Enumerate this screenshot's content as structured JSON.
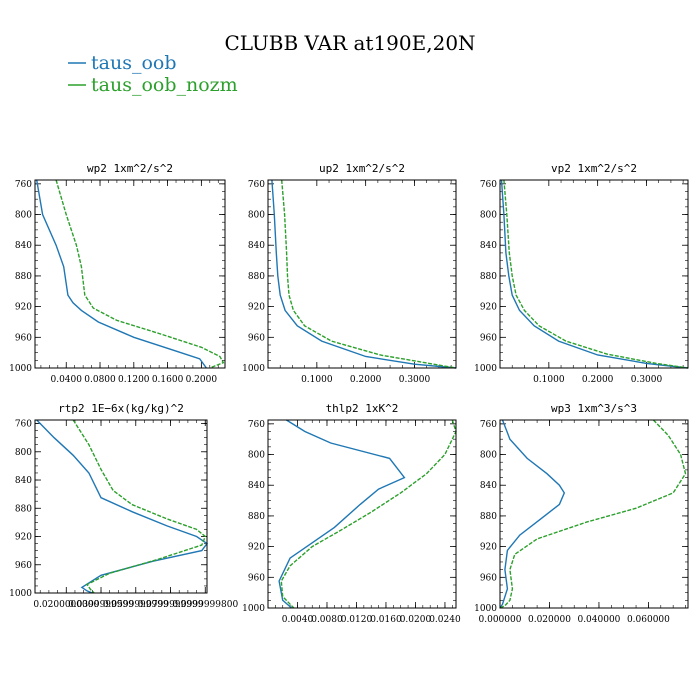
{
  "figure": {
    "title": "CLUBB VAR at190E,20N"
  },
  "legend": [
    {
      "name": "taus_oob",
      "color": "#1f77b4"
    },
    {
      "name": "taus_oob_nozm",
      "color": "#2ca02c"
    }
  ],
  "chart_data": [
    {
      "type": "line",
      "title": "wp2   1xm^2/s^2",
      "y_ticks": [
        "760",
        "800",
        "840",
        "880",
        "920",
        "960",
        "1000"
      ],
      "x_ticks": [
        "0.0400",
        "0.0800",
        "0.1200",
        "0.1600",
        "0.2000"
      ],
      "xlim": [
        0.003,
        0.228
      ],
      "ylim": [
        1000,
        755
      ],
      "series": [
        {
          "name": "taus_oob",
          "x": [
            0.005,
            0.012,
            0.028,
            0.037,
            0.042,
            0.048,
            0.058,
            0.078,
            0.12,
            0.17,
            0.198,
            0.206
          ],
          "y": [
            755,
            800,
            840,
            868,
            905,
            915,
            925,
            940,
            960,
            978,
            988,
            1000
          ]
        },
        {
          "name": "taus_oob_nozm",
          "x": [
            0.028,
            0.04,
            0.052,
            0.058,
            0.062,
            0.072,
            0.1,
            0.15,
            0.2,
            0.222,
            0.226,
            0.21
          ],
          "y": [
            755,
            800,
            840,
            868,
            905,
            922,
            938,
            955,
            973,
            985,
            993,
            1000
          ]
        }
      ]
    },
    {
      "type": "line",
      "title": "up2   1xm^2/s^2",
      "y_ticks": [
        "760",
        "800",
        "840",
        "880",
        "920",
        "960",
        "1000"
      ],
      "x_ticks": [
        "0.1000",
        "0.2000",
        "0.3000"
      ],
      "xlim": [
        0.0,
        0.385
      ],
      "ylim": [
        1000,
        755
      ],
      "series": [
        {
          "name": "taus_oob",
          "x": [
            0.008,
            0.013,
            0.017,
            0.02,
            0.025,
            0.035,
            0.06,
            0.11,
            0.2,
            0.3,
            0.385
          ],
          "y": [
            755,
            800,
            850,
            880,
            905,
            925,
            945,
            965,
            985,
            995,
            1000
          ]
        },
        {
          "name": "taus_oob_nozm",
          "x": [
            0.028,
            0.034,
            0.038,
            0.04,
            0.043,
            0.052,
            0.075,
            0.13,
            0.23,
            0.33,
            0.385
          ],
          "y": [
            755,
            800,
            850,
            880,
            905,
            925,
            945,
            965,
            983,
            994,
            1000
          ]
        }
      ]
    },
    {
      "type": "line",
      "title": "vp2   1xm^2/s^2",
      "y_ticks": [
        "760",
        "800",
        "840",
        "880",
        "920",
        "960",
        "1000"
      ],
      "x_ticks": [
        "0.1000",
        "0.2000",
        "0.3000"
      ],
      "xlim": [
        0.0,
        0.385
      ],
      "ylim": [
        1000,
        755
      ],
      "series": [
        {
          "name": "taus_oob",
          "x": [
            0.003,
            0.008,
            0.012,
            0.018,
            0.025,
            0.04,
            0.07,
            0.12,
            0.2,
            0.3,
            0.385
          ],
          "y": [
            755,
            800,
            850,
            880,
            905,
            925,
            945,
            965,
            983,
            994,
            1000
          ]
        },
        {
          "name": "taus_oob_nozm",
          "x": [
            0.008,
            0.014,
            0.019,
            0.025,
            0.033,
            0.05,
            0.08,
            0.135,
            0.22,
            0.32,
            0.385
          ],
          "y": [
            755,
            800,
            850,
            880,
            905,
            925,
            945,
            965,
            982,
            994,
            1000
          ]
        }
      ]
    },
    {
      "type": "line",
      "title": "rtp2   1E−6x(kg/kg)^2",
      "y_ticks": [
        "760",
        "800",
        "840",
        "880",
        "920",
        "960",
        "1000"
      ],
      "x_ticks": [
        "0.0200000000",
        "0.0399999999",
        "0.0599999999",
        "0.0799999999",
        "0.0999999800"
      ],
      "xlim": [
        0.002,
        0.101
      ],
      "ylim": [
        1000,
        755
      ],
      "series": [
        {
          "name": "taus_oob",
          "x": [
            0.003,
            0.013,
            0.024,
            0.033,
            0.04,
            0.058,
            0.078,
            0.095,
            0.101,
            0.098,
            0.07,
            0.04,
            0.029,
            0.032,
            0.035
          ],
          "y": [
            755,
            780,
            805,
            830,
            865,
            885,
            905,
            920,
            930,
            940,
            955,
            975,
            992,
            997,
            1000
          ]
        },
        {
          "name": "taus_oob_nozm",
          "x": [
            0.024,
            0.033,
            0.04,
            0.047,
            0.058,
            0.078,
            0.095,
            0.1,
            0.098,
            0.072,
            0.045,
            0.032,
            0.034,
            0.036
          ],
          "y": [
            755,
            790,
            825,
            855,
            875,
            895,
            910,
            920,
            932,
            953,
            972,
            988,
            995,
            1000
          ]
        }
      ]
    },
    {
      "type": "line",
      "title": "thlp2   1xK^2",
      "y_ticks": [
        "760",
        "800",
        "840",
        "880",
        "920",
        "960",
        "1000"
      ],
      "x_ticks": [
        "0.0040",
        "0.0080",
        "0.0120",
        "0.0160",
        "0.0200",
        "0.0240"
      ],
      "xlim": [
        0.0,
        0.0255
      ],
      "ylim": [
        1000,
        755
      ],
      "series": [
        {
          "name": "taus_oob",
          "x": [
            0.0025,
            0.005,
            0.0085,
            0.0165,
            0.0185,
            0.015,
            0.0125,
            0.009,
            0.006,
            0.003,
            0.0015,
            0.002,
            0.0032
          ],
          "y": [
            755,
            770,
            785,
            805,
            830,
            845,
            865,
            895,
            915,
            935,
            965,
            990,
            1000
          ]
        },
        {
          "name": "taus_oob_nozm",
          "x": [
            0.025,
            0.0255,
            0.024,
            0.0215,
            0.018,
            0.014,
            0.01,
            0.006,
            0.003,
            0.0018,
            0.002,
            0.0035
          ],
          "y": [
            755,
            770,
            800,
            825,
            850,
            875,
            898,
            920,
            945,
            965,
            985,
            1000
          ]
        }
      ]
    },
    {
      "type": "line",
      "title": "wp3   1xm^3/s^3",
      "y_ticks": [
        "760",
        "800",
        "840",
        "880",
        "920",
        "960",
        "1000"
      ],
      "x_ticks": [
        "0.000000",
        "0.020000",
        "0.040000",
        "0.060000"
      ],
      "xlim": [
        0.0,
        0.076
      ],
      "ylim": [
        1000,
        755
      ],
      "series": [
        {
          "name": "taus_oob",
          "x": [
            0.001,
            0.004,
            0.011,
            0.019,
            0.024,
            0.026,
            0.024,
            0.016,
            0.008,
            0.003,
            0.002,
            0.003,
            0.001,
            0.0
          ],
          "y": [
            755,
            780,
            805,
            825,
            840,
            850,
            865,
            885,
            905,
            925,
            950,
            975,
            995,
            1000
          ]
        },
        {
          "name": "taus_oob_nozm",
          "x": [
            0.062,
            0.068,
            0.073,
            0.075,
            0.07,
            0.055,
            0.035,
            0.015,
            0.006,
            0.004,
            0.005,
            0.004,
            0.002,
            0.0
          ],
          "y": [
            755,
            775,
            800,
            825,
            850,
            870,
            888,
            910,
            930,
            950,
            975,
            990,
            997,
            1000
          ]
        }
      ]
    }
  ]
}
